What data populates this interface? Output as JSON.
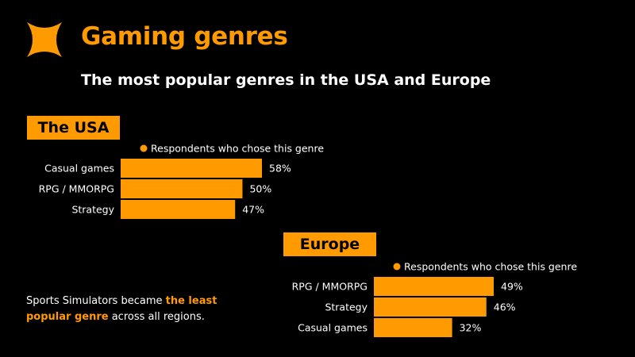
{
  "header": {
    "title": "Gaming genres",
    "subtitle": "The most popular genres in the USA and Europe"
  },
  "colors": {
    "accent": "#ff9a00",
    "background": "#000000",
    "text": "#ffffff"
  },
  "note": {
    "prefix": "Sports Simulators became ",
    "highlight": "the least popular genre",
    "suffix": " across all regions."
  },
  "chart_data": [
    {
      "type": "bar",
      "orientation": "horizontal",
      "title": "The USA",
      "legend": "Respondents who chose this genre",
      "categories": [
        "Casual games",
        "RPG / MMORPG",
        "Strategy"
      ],
      "values": [
        58,
        50,
        47
      ],
      "value_labels": [
        "58%",
        "50%",
        "47%"
      ],
      "unit": "%"
    },
    {
      "type": "bar",
      "orientation": "horizontal",
      "title": "Europe",
      "legend": "Respondents who chose this genre",
      "categories": [
        "RPG / MMORPG",
        "Strategy",
        "Casual games"
      ],
      "values": [
        49,
        46,
        32
      ],
      "value_labels": [
        "49%",
        "46%",
        "32%"
      ],
      "unit": "%"
    }
  ]
}
